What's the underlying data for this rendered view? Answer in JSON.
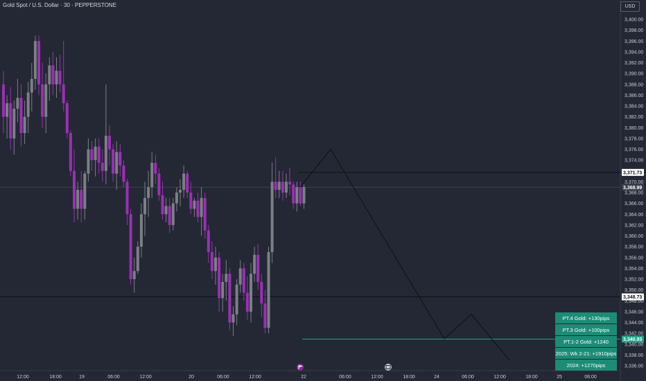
{
  "header": {
    "title": "Gold Spot / U.S. Dollar · 30 · PEPPERSTONE",
    "currency_button": "USD"
  },
  "colors": {
    "background": "#232834",
    "bull_candle": "#7d7f86",
    "bear_candle": "#9c2fb5",
    "projection_line": "#0e1016",
    "target_line": "#26a28c",
    "target_box": "#1c8c77",
    "axis_text": "#c9ccd4"
  },
  "icons": {
    "event_marker_1": "flag-event-icon",
    "event_marker_2": "calendar-event-icon"
  },
  "chart_data": {
    "type": "candlestick",
    "symbol": "Gold Spot / U.S. Dollar",
    "interval": "30",
    "source": "PEPPERSTONE",
    "y_axis": {
      "ticks": [
        "3,336.00",
        "3,338.00",
        "3,340.00",
        "3,342.00",
        "3,344.00",
        "3,346.00",
        "3,348.00",
        "3,350.00",
        "3,352.00",
        "3,354.00",
        "3,356.00",
        "3,358.00",
        "3,360.00",
        "3,362.00",
        "3,364.00",
        "3,366.00",
        "3,368.00",
        "3,370.00",
        "3,372.00",
        "3,374.00",
        "3,376.00",
        "3,378.00",
        "3,380.00",
        "3,382.00",
        "3,384.00",
        "3,386.00",
        "3,388.00",
        "3,390.00",
        "3,392.00",
        "3,394.00",
        "3,396.00",
        "3,398.00",
        "3,400.00"
      ],
      "ylim": [
        3335,
        3402
      ]
    },
    "x_axis": {
      "ticks": [
        "12:00",
        "18:00",
        "19",
        "06:00",
        "12:00",
        "20",
        "06:00",
        "12:00",
        "22",
        "06:00",
        "12:00",
        "18:00",
        "24",
        "06:00",
        "12:00",
        "18:00",
        "25",
        "06:00"
      ]
    },
    "price_labels": [
      {
        "value": 3371.73,
        "label": "3,371.73",
        "style": "horizontal-line"
      },
      {
        "value": 3368.99,
        "label": "3,368.99",
        "style": "current-price"
      },
      {
        "value": 3348.73,
        "label": "3,348.73",
        "style": "horizontal-line"
      },
      {
        "value": 3340.93,
        "label": "3,340.93",
        "style": "target"
      }
    ],
    "candles": [
      [
        3388.0,
        3390.5,
        3379.0,
        3382.0
      ],
      [
        3382.0,
        3386.0,
        3378.0,
        3384.5
      ],
      [
        3384.5,
        3387.5,
        3376.0,
        3378.0
      ],
      [
        3378.0,
        3385.0,
        3375.0,
        3383.5
      ],
      [
        3383.5,
        3389.0,
        3381.0,
        3385.5
      ],
      [
        3385.5,
        3388.0,
        3376.5,
        3379.0
      ],
      [
        3379.0,
        3385.0,
        3377.0,
        3382.0
      ],
      [
        3382.0,
        3388.5,
        3379.0,
        3386.5
      ],
      [
        3386.5,
        3392.0,
        3383.0,
        3389.0
      ],
      [
        3389.0,
        3397.0,
        3387.0,
        3396.0
      ],
      [
        3396.0,
        3397.0,
        3386.0,
        3388.0
      ],
      [
        3388.0,
        3392.0,
        3380.0,
        3382.0
      ],
      [
        3382.0,
        3390.0,
        3379.0,
        3388.0
      ],
      [
        3388.0,
        3393.0,
        3385.0,
        3391.5
      ],
      [
        3391.5,
        3394.0,
        3386.0,
        3388.0
      ],
      [
        3388.0,
        3393.0,
        3385.5,
        3390.5
      ],
      [
        3390.5,
        3393.5,
        3386.5,
        3388.0
      ],
      [
        3388.0,
        3396.0,
        3383.0,
        3384.5
      ],
      [
        3384.5,
        3385.0,
        3378.0,
        3379.0
      ],
      [
        3379.0,
        3379.5,
        3371.0,
        3372.0
      ],
      [
        3372.0,
        3376.0,
        3362.5,
        3365.0
      ],
      [
        3365.0,
        3370.0,
        3363.0,
        3368.5
      ],
      [
        3368.5,
        3372.0,
        3362.5,
        3365.0
      ],
      [
        3365.0,
        3372.0,
        3363.0,
        3371.5
      ],
      [
        3371.5,
        3378.0,
        3370.0,
        3376.0
      ],
      [
        3376.0,
        3377.5,
        3372.0,
        3374.0
      ],
      [
        3374.0,
        3378.0,
        3371.0,
        3376.5
      ],
      [
        3376.5,
        3378.0,
        3371.5,
        3373.5
      ],
      [
        3373.5,
        3376.0,
        3370.0,
        3372.0
      ],
      [
        3372.0,
        3388.0,
        3369.5,
        3378.5
      ],
      [
        3378.5,
        3380.5,
        3373.0,
        3376.0
      ],
      [
        3376.0,
        3377.0,
        3370.0,
        3371.5
      ],
      [
        3371.5,
        3377.5,
        3368.5,
        3375.5
      ],
      [
        3375.5,
        3377.0,
        3371.0,
        3373.0
      ],
      [
        3373.0,
        3374.0,
        3369.0,
        3370.0
      ],
      [
        3370.0,
        3370.5,
        3362.0,
        3364.0
      ],
      [
        3364.0,
        3365.0,
        3351.0,
        3352.0
      ],
      [
        3352.0,
        3356.0,
        3349.5,
        3353.5
      ],
      [
        3353.5,
        3359.0,
        3353.0,
        3358.0
      ],
      [
        3358.0,
        3366.0,
        3356.0,
        3364.0
      ],
      [
        3364.0,
        3370.0,
        3360.0,
        3367.0
      ],
      [
        3367.0,
        3372.0,
        3363.5,
        3369.0
      ],
      [
        3369.0,
        3375.5,
        3367.0,
        3373.5
      ],
      [
        3373.5,
        3375.0,
        3369.5,
        3371.5
      ],
      [
        3371.5,
        3372.5,
        3366.5,
        3367.5
      ],
      [
        3367.5,
        3370.0,
        3363.0,
        3364.0
      ],
      [
        3364.0,
        3367.0,
        3362.5,
        3365.5
      ],
      [
        3365.5,
        3367.0,
        3360.5,
        3362.0
      ],
      [
        3362.0,
        3367.0,
        3361.0,
        3366.0
      ],
      [
        3366.0,
        3369.0,
        3364.5,
        3368.0
      ],
      [
        3368.0,
        3370.5,
        3365.5,
        3368.5
      ],
      [
        3368.5,
        3373.0,
        3367.0,
        3371.5
      ],
      [
        3371.5,
        3372.0,
        3367.0,
        3368.0
      ],
      [
        3368.0,
        3370.0,
        3364.0,
        3365.0
      ],
      [
        3365.0,
        3367.0,
        3363.5,
        3366.5
      ],
      [
        3366.5,
        3368.0,
        3362.5,
        3363.5
      ],
      [
        3363.5,
        3369.0,
        3360.0,
        3367.0
      ],
      [
        3367.0,
        3368.0,
        3359.5,
        3361.0
      ],
      [
        3361.0,
        3362.0,
        3355.0,
        3357.0
      ],
      [
        3357.0,
        3359.0,
        3352.0,
        3353.5
      ],
      [
        3353.5,
        3358.0,
        3351.0,
        3356.0
      ],
      [
        3356.0,
        3357.0,
        3346.0,
        3348.5
      ],
      [
        3348.5,
        3353.0,
        3346.0,
        3351.5
      ],
      [
        3351.5,
        3355.5,
        3348.0,
        3353.0
      ],
      [
        3353.0,
        3354.0,
        3342.5,
        3344.0
      ],
      [
        3344.0,
        3347.0,
        3341.5,
        3345.5
      ],
      [
        3345.5,
        3352.0,
        3343.5,
        3351.0
      ],
      [
        3351.0,
        3355.5,
        3349.5,
        3354.0
      ],
      [
        3354.0,
        3355.0,
        3348.0,
        3349.5
      ],
      [
        3349.5,
        3352.5,
        3344.5,
        3346.0
      ],
      [
        3346.0,
        3355.0,
        3344.0,
        3353.0
      ],
      [
        3353.0,
        3358.0,
        3351.5,
        3356.5
      ],
      [
        3356.5,
        3358.5,
        3350.0,
        3351.5
      ],
      [
        3351.5,
        3353.0,
        3345.0,
        3347.5
      ],
      [
        3347.5,
        3350.0,
        3342.0,
        3343.0
      ],
      [
        3343.0,
        3358.0,
        3342.0,
        3357.0
      ],
      [
        3357.0,
        3373.5,
        3355.0,
        3370.0
      ],
      [
        3370.0,
        3374.5,
        3367.0,
        3368.5
      ],
      [
        3368.5,
        3372.0,
        3367.0,
        3370.0
      ],
      [
        3370.0,
        3372.0,
        3366.5,
        3368.0
      ],
      [
        3368.0,
        3371.5,
        3367.0,
        3370.0
      ],
      [
        3370.0,
        3372.5,
        3367.5,
        3369.5
      ],
      [
        3369.5,
        3370.0,
        3365.0,
        3366.0
      ],
      [
        3366.0,
        3370.0,
        3364.5,
        3369.0
      ],
      [
        3369.0,
        3370.0,
        3365.5,
        3366.0
      ],
      [
        3366.0,
        3369.5,
        3365.0,
        3368.99
      ]
    ],
    "projection_path": [
      {
        "x": "22 00:30",
        "y": 3369.0
      },
      {
        "x": "22 04:00",
        "y": 3376.0
      },
      {
        "x": "24 02:30",
        "y": 3341.0
      },
      {
        "x": "24 06:00",
        "y": 3345.5
      },
      {
        "x": "24 09:30",
        "y": 3337.0
      }
    ],
    "targets": [
      {
        "label": "PT.4 Gold: +130pips"
      },
      {
        "label": "PT.3 Gold: +100pips"
      },
      {
        "label": "PT.1-2 Gold: +1240"
      },
      {
        "label": "2025: Wk 2-21: +1910pips"
      },
      {
        "label": "2024: +1270pips"
      }
    ]
  }
}
